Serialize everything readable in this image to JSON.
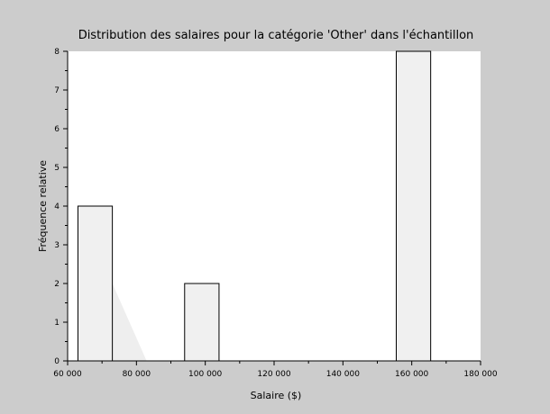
{
  "chart_data": {
    "type": "bar",
    "title": "Distribution des salaires pour la catégorie 'Other' dans l'échantillon",
    "xlabel": "Salaire ($)",
    "ylabel": "Fréquence relative",
    "xlim": [
      60000,
      180000
    ],
    "ylim": [
      0,
      8
    ],
    "x_ticks": [
      60000,
      80000,
      100000,
      120000,
      140000,
      160000,
      180000
    ],
    "x_tick_labels": [
      "60 000",
      "80 000",
      "100 000",
      "120 000",
      "140 000",
      "160 000",
      "180 000"
    ],
    "y_ticks": [
      0,
      1,
      2,
      3,
      4,
      5,
      6,
      7,
      8
    ],
    "y_tick_labels": [
      "0",
      "1",
      "2",
      "3",
      "4",
      "5",
      "6",
      "7",
      "8"
    ],
    "bars": [
      {
        "x_start": 63000,
        "x_end": 73000,
        "value": 4
      },
      {
        "x_start": 94000,
        "x_end": 104000,
        "value": 2
      },
      {
        "x_start": 155500,
        "x_end": 165500,
        "value": 8
      }
    ],
    "grid": false,
    "colors": {
      "figure_background": "#cccccc",
      "plot_background": "#ffffff",
      "bar_fill": "#f0f0f0",
      "bar_stroke": "#000000",
      "artifact_fill": "#eeeeee"
    }
  }
}
